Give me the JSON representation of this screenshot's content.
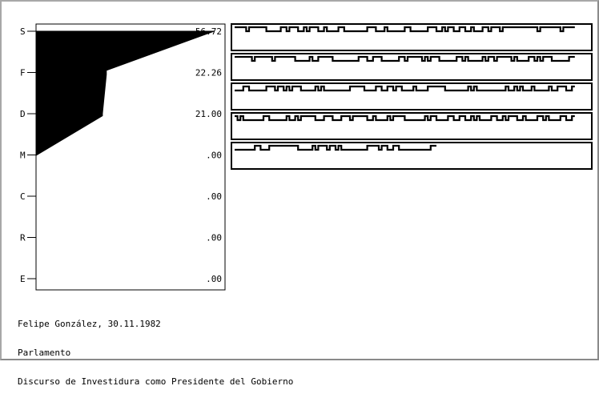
{
  "chart_data": {
    "type": "area",
    "categories": [
      "S",
      "F",
      "D",
      "M",
      "C",
      "R",
      "E"
    ],
    "values": [
      56.72,
      22.26,
      21.0,
      0,
      0,
      0,
      0
    ],
    "value_labels": [
      "56.72",
      "22.26",
      "21.00",
      ".00",
      ".00",
      ".00",
      ".00"
    ],
    "xlim": [
      0,
      60
    ],
    "grid": false
  },
  "caption": {
    "line1": "Felipe González, 30.11.1982",
    "line2": "Parlamento",
    "line3": "Discurso de Investidura como Presidente del Gobierno"
  },
  "sequence_strips": {
    "count": 5,
    "pattern_rows": [
      "1111011111100000110111001011100100001100000000111000100000011000000111001011001100100011011101111111111110111111101111",
      "1111110111111011111110000010011111000000000111001110000001101111101011100000011010000010110111110100001101011100000011",
      "0001100000011101101011100000101000000000111110000110011011000010000111111000000001010000000000100101000100000100111001",
      "1010000000110000001001011111000111000111011111001000010111100000001011000011001100101000011001011100100001101000011001",
      "0000000110001111111111000001011101101000000000111101100110000000000011"
    ]
  }
}
